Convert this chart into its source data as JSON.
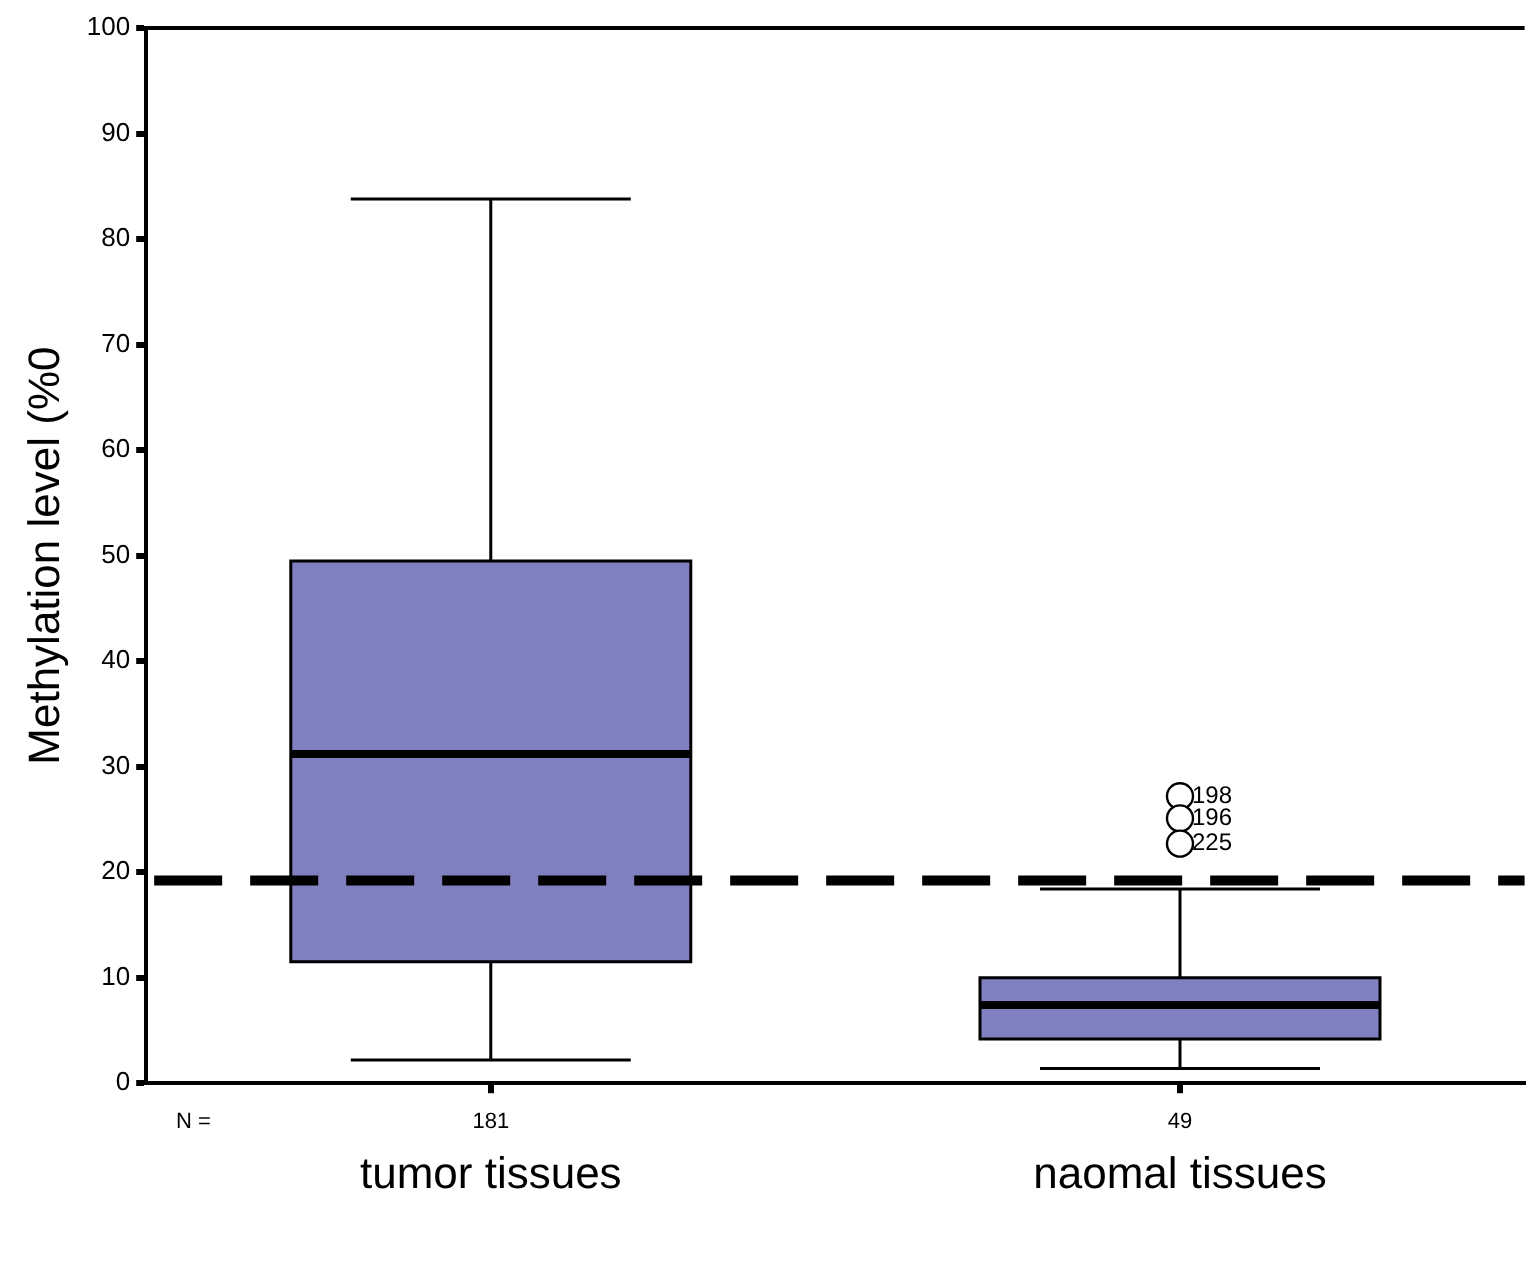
{
  "chart_data": {
    "type": "box",
    "ylabel": "Methylation level (%0",
    "categories": [
      "tumor tissues",
      "naomal tissues"
    ],
    "boxes": [
      {
        "low": 2.2,
        "q1": 11.5,
        "median": 31.2,
        "q3": 49.5,
        "high": 83.8
      },
      {
        "low": 1.4,
        "q1": 4.2,
        "median": 7.4,
        "q3": 10.0,
        "high": 18.4,
        "outliers": [
          27.2,
          25.1,
          22.7
        ]
      }
    ],
    "color": "#8080c0",
    "ylim": [
      0,
      100
    ],
    "yticks": [
      0,
      10,
      20,
      30,
      40,
      50,
      60,
      70,
      80,
      90,
      100
    ],
    "ref_lines": [
      {
        "axis": "y",
        "value": 19.2,
        "line_style": "dashed",
        "color": "#000000"
      }
    ],
    "annotations": [
      "N =",
      "181",
      "49",
      "198",
      "196",
      "225"
    ],
    "grid": false,
    "legend": false
  }
}
